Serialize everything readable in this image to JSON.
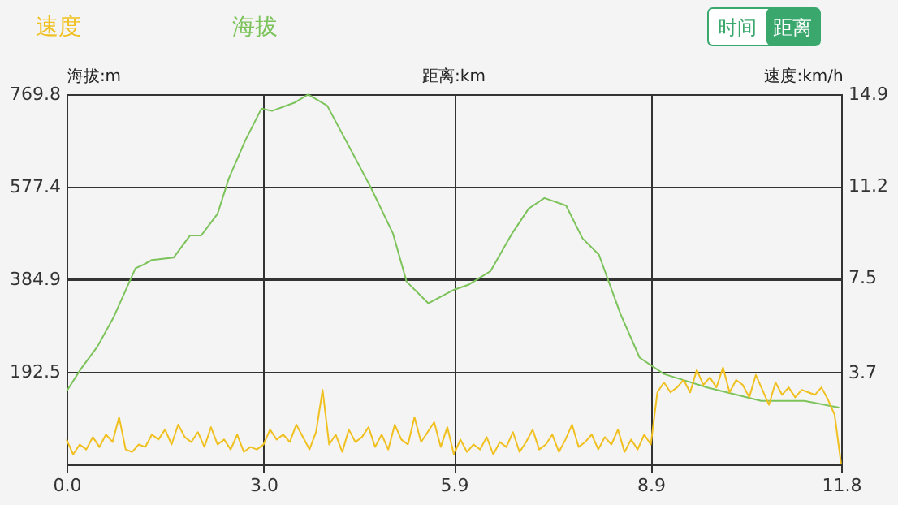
{
  "chart_data": {
    "type": "line",
    "xlabel": "距离:km",
    "ylabel": "海拔:m",
    "y2label": "速度:km/h",
    "annotations": [
      "时间",
      "距离"
    ],
    "xlim": [
      0,
      11.8
    ],
    "xticks": [
      {
        "value": 0,
        "label": "0.0"
      },
      {
        "value": 3,
        "label": "3.0"
      },
      5.9,
      8.9,
      11.8
    ],
    "ylim": [
      0,
      769.8
    ],
    "yticks": [
      192.5,
      384.9,
      577.4,
      769.8
    ],
    "y2lim": [
      0,
      14.9
    ],
    "y2ticks": [
      3.7,
      7.5,
      11.2,
      14.9
    ],
    "grid": true,
    "legend": "top left",
    "marker": "none",
    "line_style": "solid",
    "series": [
      {
        "name": "速度",
        "color": "#f0c020",
        "axis": "y2",
        "x": [
          0,
          0.1,
          0.2,
          0.3,
          0.4,
          0.5,
          0.6,
          0.7,
          0.8,
          0.9,
          1.0,
          1.1,
          1.2,
          1.3,
          1.4,
          1.5,
          1.6,
          1.7,
          1.8,
          1.9,
          2.0,
          2.1,
          2.2,
          2.3,
          2.4,
          2.5,
          2.6,
          2.7,
          2.8,
          2.9,
          3.0,
          3.1,
          3.2,
          3.3,
          3.4,
          3.5,
          3.6,
          3.7,
          3.8,
          3.9,
          4.0,
          4.1,
          4.2,
          4.3,
          4.4,
          4.5,
          4.6,
          4.7,
          4.8,
          4.9,
          5.0,
          5.1,
          5.2,
          5.3,
          5.4,
          5.5,
          5.6,
          5.7,
          5.8,
          5.9,
          6.0,
          6.1,
          6.2,
          6.3,
          6.4,
          6.5,
          6.6,
          6.7,
          6.8,
          6.9,
          7.0,
          7.1,
          7.2,
          7.3,
          7.4,
          7.5,
          7.6,
          7.7,
          7.8,
          7.9,
          8.0,
          8.1,
          8.2,
          8.3,
          8.4,
          8.5,
          8.6,
          8.7,
          8.8,
          8.9,
          9.0,
          9.1,
          9.2,
          9.3,
          9.4,
          9.5,
          9.6,
          9.7,
          9.8,
          9.9,
          10.0,
          10.1,
          10.2,
          10.3,
          10.4,
          10.5,
          10.6,
          10.7,
          10.8,
          10.9,
          11.0,
          11.1,
          11.2,
          11.3,
          11.4,
          11.5,
          11.6,
          11.7,
          11.8
        ],
        "values": [
          1.0,
          0.4,
          0.8,
          0.6,
          1.1,
          0.7,
          1.2,
          0.9,
          1.9,
          0.6,
          0.5,
          0.8,
          0.7,
          1.2,
          1.0,
          1.4,
          0.8,
          1.6,
          1.1,
          0.9,
          1.3,
          0.7,
          1.5,
          0.8,
          1.0,
          0.6,
          1.2,
          0.5,
          0.7,
          0.6,
          0.8,
          1.4,
          1.0,
          1.2,
          0.9,
          1.6,
          1.1,
          0.6,
          1.3,
          3.0,
          0.8,
          1.2,
          0.5,
          1.4,
          0.9,
          1.1,
          1.5,
          0.7,
          1.2,
          0.6,
          1.6,
          1.0,
          0.8,
          1.9,
          0.9,
          1.3,
          1.7,
          0.7,
          1.5,
          0.4,
          1.0,
          0.5,
          0.8,
          0.6,
          1.1,
          0.4,
          0.9,
          0.7,
          1.3,
          0.5,
          0.9,
          1.4,
          0.6,
          0.8,
          1.2,
          0.5,
          1.0,
          1.6,
          0.7,
          0.9,
          1.2,
          0.6,
          1.1,
          0.8,
          1.4,
          0.5,
          1.0,
          0.6,
          1.2,
          0.8,
          2.9,
          3.3,
          2.9,
          3.1,
          3.4,
          2.9,
          3.8,
          3.2,
          3.5,
          3.1,
          3.9,
          2.9,
          3.4,
          3.2,
          2.7,
          3.6,
          3.0,
          2.4,
          3.3,
          2.8,
          3.1,
          2.7,
          3.0,
          2.9,
          2.8,
          3.1,
          2.6,
          2.0,
          0.0
        ]
      },
      {
        "name": "海拔",
        "color": "#7dc35b",
        "x": [
          0,
          0.22,
          0.47,
          0.72,
          1.05,
          1.15,
          1.3,
          1.63,
          1.88,
          2.05,
          2.3,
          2.47,
          2.72,
          2.97,
          3.13,
          3.47,
          3.68,
          3.97,
          4.3,
          4.63,
          4.97,
          5.18,
          5.51,
          5.9,
          6.13,
          6.46,
          6.79,
          7.04,
          7.28,
          7.61,
          7.86,
          8.11,
          8.44,
          8.73,
          9.1,
          9.76,
          10.58,
          11.24,
          11.77
        ],
        "values": [
          152,
          199,
          245,
          307,
          408,
          414,
          425,
          430,
          476,
          476,
          521,
          594,
          673,
          740,
          735,
          752,
          769,
          746,
          662,
          577,
          481,
          380,
          335,
          363,
          374,
          402,
          481,
          532,
          554,
          538,
          470,
          436,
          312,
          222,
          188,
          160,
          132,
          132,
          118
        ]
      }
    ]
  }
}
